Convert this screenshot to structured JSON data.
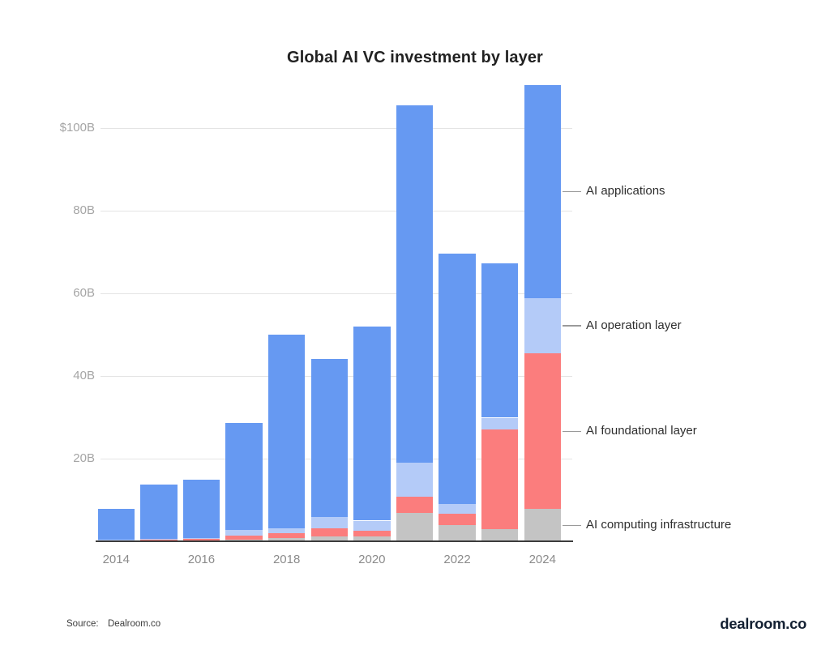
{
  "chart_data": {
    "type": "bar",
    "stacked": true,
    "title": "Global AI VC investment by layer",
    "unit": "billion USD",
    "categories": [
      "2014",
      "2015",
      "2016",
      "2017",
      "2018",
      "2019",
      "2020",
      "2021",
      "2022",
      "2023",
      "2024"
    ],
    "x_tick_labels": [
      "2014",
      "2016",
      "2018",
      "2020",
      "2022",
      "2024"
    ],
    "series": [
      {
        "name": "AI computing infrastructure",
        "color": "#c4c4c4",
        "values": [
          0.1,
          0.2,
          0.25,
          0.4,
          0.8,
          1.2,
          1.2,
          6.9,
          3.9,
          2.9,
          7.8
        ]
      },
      {
        "name": "AI foundational layer",
        "color": "#fb7d7d",
        "values": [
          0.3,
          0.3,
          0.4,
          0.9,
          1.2,
          2.0,
          1.4,
          3.9,
          2.7,
          24.1,
          37.6
        ]
      },
      {
        "name": "AI operation layer",
        "color": "#b4cbf8",
        "values": [
          0.05,
          0.1,
          0.15,
          1.5,
          1.2,
          2.7,
          2.4,
          8.2,
          2.5,
          2.9,
          13.5
        ]
      },
      {
        "name": "AI applications",
        "color": "#6699f2",
        "values": [
          7.4,
          13.1,
          14.1,
          25.8,
          46.8,
          38.2,
          47.0,
          86.5,
          60.6,
          37.3,
          51.5
        ]
      }
    ],
    "totals": [
      7.85,
      13.7,
      14.9,
      28.6,
      50.0,
      44.1,
      52.0,
      105.5,
      69.7,
      67.2,
      110.4
    ],
    "y_ticks": [
      {
        "value": 20,
        "label": "20B"
      },
      {
        "value": 40,
        "label": "40B"
      },
      {
        "value": 60,
        "label": "60B"
      },
      {
        "value": 80,
        "label": "80B"
      },
      {
        "value": 100,
        "label": "$100B"
      }
    ],
    "ylim": [
      0,
      112
    ],
    "grid": true,
    "legend_position": "right-annotation-labels",
    "colors": {
      "grid": "#e4e4e4",
      "axis_line": "#3c3c3c",
      "y_tick_text": "#a5a5a5",
      "x_tick_text": "#8b8b8b",
      "annotation_text": "#2e2e2e",
      "title_text": "#222222"
    }
  },
  "footer": {
    "source_label": "Source:",
    "source_value": "Dealroom.co",
    "logo_text": "dealroom.co"
  }
}
